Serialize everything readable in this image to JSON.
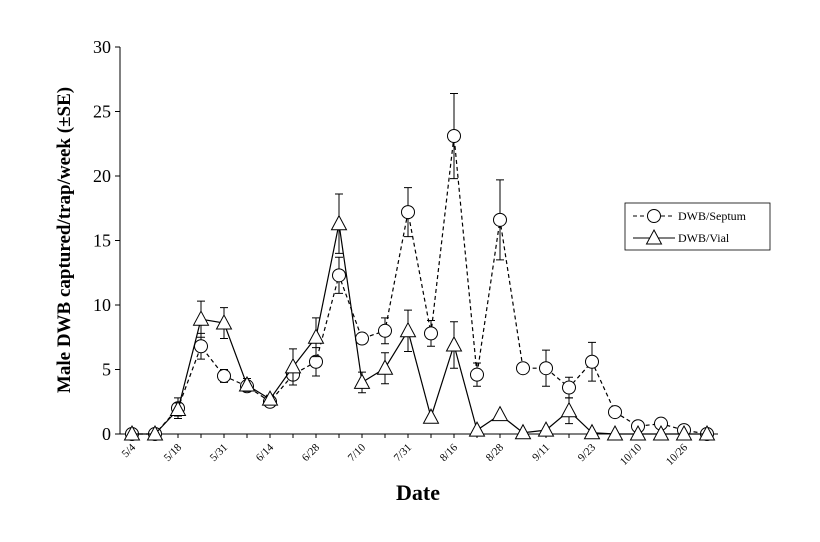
{
  "chart_data": {
    "type": "line",
    "x_label": "Date",
    "y_label": "Male DWB captured/trap/week (±SE)",
    "categories": [
      "5/4",
      null,
      "5/18",
      null,
      "5/31",
      null,
      "6/14",
      null,
      "6/28",
      null,
      "7/10",
      null,
      "7/31",
      null,
      "8/16",
      null,
      "8/28",
      null,
      "9/11",
      null,
      "9/23",
      null,
      "10/10",
      null,
      "10/26",
      null
    ],
    "ylim": [
      0,
      30
    ],
    "yticks": [
      0,
      5,
      10,
      15,
      20,
      25,
      30
    ],
    "legend": "upper right",
    "series": [
      {
        "name": "DWB/Septum",
        "color": "#000000",
        "dash": true,
        "marker": "circle",
        "values": [
          0,
          0,
          2.0,
          6.8,
          4.5,
          3.7,
          2.5,
          4.6,
          5.6,
          12.3,
          7.4,
          8.0,
          17.2,
          7.8,
          23.1,
          4.6,
          16.6,
          5.1,
          5.1,
          3.6,
          5.6,
          1.7,
          0.6,
          0.8,
          0.3,
          0
        ],
        "errors": [
          null,
          null,
          0.8,
          1.0,
          0.5,
          null,
          null,
          null,
          1.1,
          1.4,
          null,
          1.0,
          1.9,
          1.0,
          3.3,
          0.9,
          3.1,
          null,
          1.4,
          0.8,
          1.5,
          null,
          null,
          null,
          null,
          null
        ]
      },
      {
        "name": "DWB/Vial",
        "color": "#000000",
        "dash": false,
        "marker": "triangle",
        "values": [
          0,
          0,
          1.9,
          8.9,
          8.6,
          3.8,
          2.7,
          5.2,
          7.5,
          16.3,
          4.0,
          5.1,
          8.0,
          1.3,
          6.9,
          0.3,
          1.5,
          0.1,
          0.3,
          1.8,
          0.1,
          0,
          0,
          0,
          0,
          0
        ],
        "errors": [
          null,
          null,
          0.5,
          1.4,
          1.2,
          0.5,
          0.3,
          1.4,
          1.5,
          2.3,
          0.8,
          1.2,
          1.6,
          null,
          1.8,
          null,
          null,
          null,
          null,
          1.0,
          null,
          null,
          null,
          null,
          null,
          null
        ]
      }
    ]
  }
}
